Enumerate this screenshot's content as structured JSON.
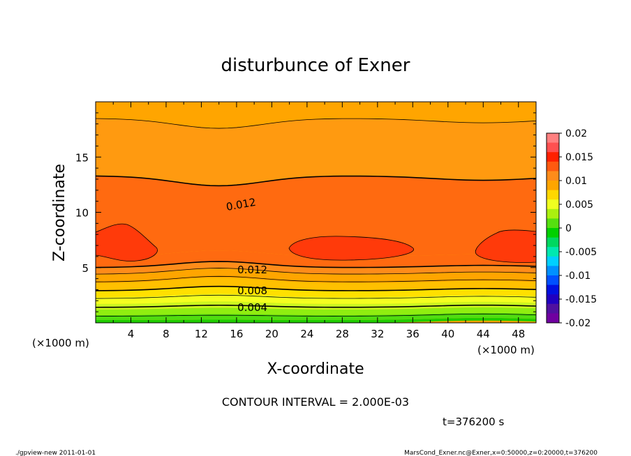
{
  "chart_data": {
    "type": "contour",
    "title": "disturbunce of Exner",
    "xlabel": "X-coordinate",
    "ylabel": "Z-coordinate",
    "x_unit_left": "(×1000 m)",
    "x_unit_right": "(×1000 m)",
    "xlim": [
      0,
      50
    ],
    "ylim": [
      0,
      20
    ],
    "x_ticks": [
      "4",
      "8",
      "12",
      "16",
      "20",
      "24",
      "28",
      "32",
      "36",
      "40",
      "44",
      "48"
    ],
    "y_ticks": [
      "5",
      "10",
      "15"
    ],
    "contour_labels": [
      {
        "text": "0.012",
        "x": 16.5,
        "z": 10.7
      },
      {
        "text": "0.012",
        "x": 17.8,
        "z": 4.8
      },
      {
        "text": "0.008",
        "x": 17.8,
        "z": 2.9
      },
      {
        "text": "0.004",
        "x": 17.8,
        "z": 1.4
      }
    ],
    "colorbar": {
      "labels": [
        "0.02",
        "0.015",
        "0.01",
        "0.005",
        "0",
        "-0.005",
        "-0.01",
        "-0.015",
        "-0.02"
      ],
      "levels": [
        0.02,
        0.015,
        0.01,
        0.005,
        0,
        -0.005,
        -0.01,
        -0.015,
        -0.02
      ],
      "colors": [
        "#ff8080",
        "#ff5050",
        "#ff2000",
        "#ff5a10",
        "#ff8c1a",
        "#ffa500",
        "#ffd800",
        "#f0ff20",
        "#aaf010",
        "#55e010",
        "#00d000",
        "#00d860",
        "#00e8b0",
        "#00d0ff",
        "#0090ff",
        "#0050ff",
        "#0010e0",
        "#2000c0",
        "#5010a0",
        "#7000a0"
      ]
    },
    "bands": [
      {
        "z_from": 0.0,
        "z_to": 0.25,
        "color": "#20cc00"
      },
      {
        "z_from": 0.25,
        "z_to": 0.7,
        "color": "#50dd10"
      },
      {
        "z_from": 0.7,
        "z_to": 1.2,
        "color": "#90ee10"
      },
      {
        "z_from": 1.2,
        "z_to": 1.7,
        "color": "#ccf820"
      },
      {
        "z_from": 1.7,
        "z_to": 2.3,
        "color": "#f4ff20"
      },
      {
        "z_from": 2.3,
        "z_to": 2.9,
        "color": "#ffe000"
      },
      {
        "z_from": 2.9,
        "z_to": 3.6,
        "color": "#ffc000"
      },
      {
        "z_from": 3.6,
        "z_to": 4.4,
        "color": "#ffa500"
      },
      {
        "z_from": 4.4,
        "z_to": 5.0,
        "color": "#ff8c1a"
      },
      {
        "z_from": 5.0,
        "z_to": 6.0,
        "color": "#ff6a10"
      },
      {
        "z_from": 6.0,
        "z_to": 13.3,
        "color": "#ff6a10"
      },
      {
        "z_from": 13.3,
        "z_to": 18.5,
        "color": "#ff9a10"
      },
      {
        "z_from": 18.5,
        "z_to": 20.0,
        "color": "#ffa500"
      }
    ],
    "contours_z": [
      0.6,
      1.4,
      2.2,
      2.9,
      3.7,
      4.4,
      5.0,
      13.3,
      18.5
    ]
  },
  "annotations": {
    "contour_interval": "CONTOUR INTERVAL = 2.000E-03",
    "time": "t=376200 s",
    "footer_left": "./gpview-new   2011-01-01",
    "footer_right": "MarsCond_Exner.nc@Exner,x=0:50000,z=0:20000,t=376200"
  }
}
